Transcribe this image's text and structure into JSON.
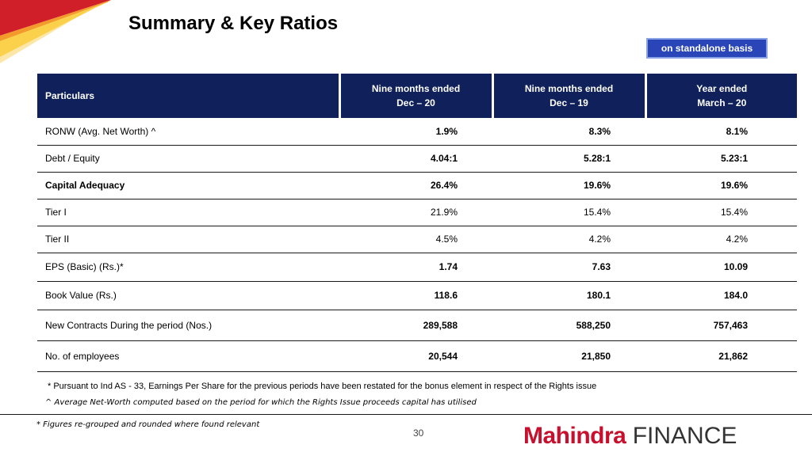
{
  "header": {
    "title": "Summary & Key Ratios",
    "badge": "on standalone basis"
  },
  "table": {
    "columns": [
      {
        "line1": "Particulars",
        "line2": ""
      },
      {
        "line1": "Nine months ended",
        "line2": "Dec – 20"
      },
      {
        "line1": "Nine months ended",
        "line2": "Dec – 19"
      },
      {
        "line1": "Year ended",
        "line2": "March – 20"
      }
    ],
    "rows": [
      {
        "label": "RONW (Avg. Net Worth) ^",
        "values": [
          "1.9%",
          "8.3%",
          "8.1%"
        ]
      },
      {
        "label": "Debt / Equity",
        "values": [
          "4.04:1",
          "5.28:1",
          "5.23:1"
        ]
      },
      {
        "label": "Capital Adequacy",
        "values": [
          "26.4%",
          "19.6%",
          "19.6%"
        ]
      },
      {
        "label": "Tier I",
        "values": [
          "21.9%",
          "15.4%",
          "15.4%"
        ]
      },
      {
        "label": "Tier II",
        "values": [
          "4.5%",
          "4.2%",
          "4.2%"
        ]
      },
      {
        "label": "EPS (Basic) (Rs.)*",
        "values": [
          "1.74",
          "7.63",
          "10.09"
        ]
      },
      {
        "label": "Book Value (Rs.)",
        "values": [
          "118.6",
          "180.1",
          "184.0"
        ]
      },
      {
        "label": "New Contracts During the period (Nos.)",
        "values": [
          "289,588",
          "588,250",
          "757,463"
        ]
      },
      {
        "label": "No. of employees",
        "values": [
          "20,544",
          "21,850",
          "21,862"
        ]
      }
    ]
  },
  "notes": {
    "note1": "* Pursuant to Ind AS - 33, Earnings Per Share for the previous periods have been restated for the bonus element in respect of the Rights issue",
    "note2": "^ Average Net-Worth computed based on the period for which the Rights Issue proceeds capital has utilised",
    "note3": "* Figures re-grouped and rounded where found relevant"
  },
  "footer": {
    "page_number": "30",
    "logo_brand": "Mahindra",
    "logo_suffix": "FINANCE"
  },
  "colors": {
    "header_bg": "#10205a",
    "badge_bg": "#2a45b8",
    "brand_red": "#c8102e"
  }
}
